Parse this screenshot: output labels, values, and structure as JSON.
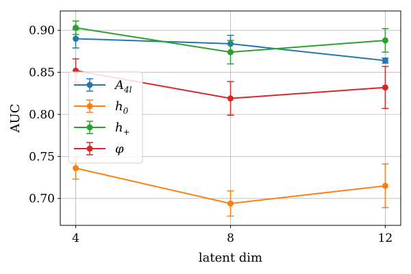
{
  "chart_data": {
    "type": "line",
    "title": "",
    "xlabel": "latent dim",
    "ylabel": "AUC",
    "x": [
      4,
      8,
      12
    ],
    "xticks": [
      "4",
      "8",
      "12"
    ],
    "xlim": [
      3.6,
      12.4
    ],
    "yticks": [
      0.7,
      0.75,
      0.8,
      0.85,
      0.9
    ],
    "ytick_labels": [
      "0.70",
      "0.75",
      "0.80",
      "0.85",
      "0.90"
    ],
    "ylim": [
      0.668,
      0.923
    ],
    "grid": true,
    "legend_position": "center-left",
    "series": [
      {
        "name": "A_4l",
        "label": "A",
        "subscript": "4l",
        "color": "#1f77b4",
        "values": [
          0.89,
          0.884,
          0.864
        ],
        "errors": [
          0.011,
          0.01,
          0.003
        ]
      },
      {
        "name": "h_0",
        "label": "h",
        "subscript": "0",
        "color": "#ff7f0e",
        "values": [
          0.736,
          0.694,
          0.715
        ],
        "errors": [
          0.013,
          0.015,
          0.026
        ]
      },
      {
        "name": "h_+",
        "label": "h",
        "subscript": "+",
        "color": "#2ca02c",
        "values": [
          0.903,
          0.874,
          0.888
        ],
        "errors": [
          0.008,
          0.014,
          0.014
        ]
      },
      {
        "name": "phi",
        "label": "φ",
        "subscript": "",
        "color": "#d62728",
        "values": [
          0.852,
          0.819,
          0.832
        ],
        "errors": [
          0.014,
          0.02,
          0.025
        ]
      }
    ]
  }
}
